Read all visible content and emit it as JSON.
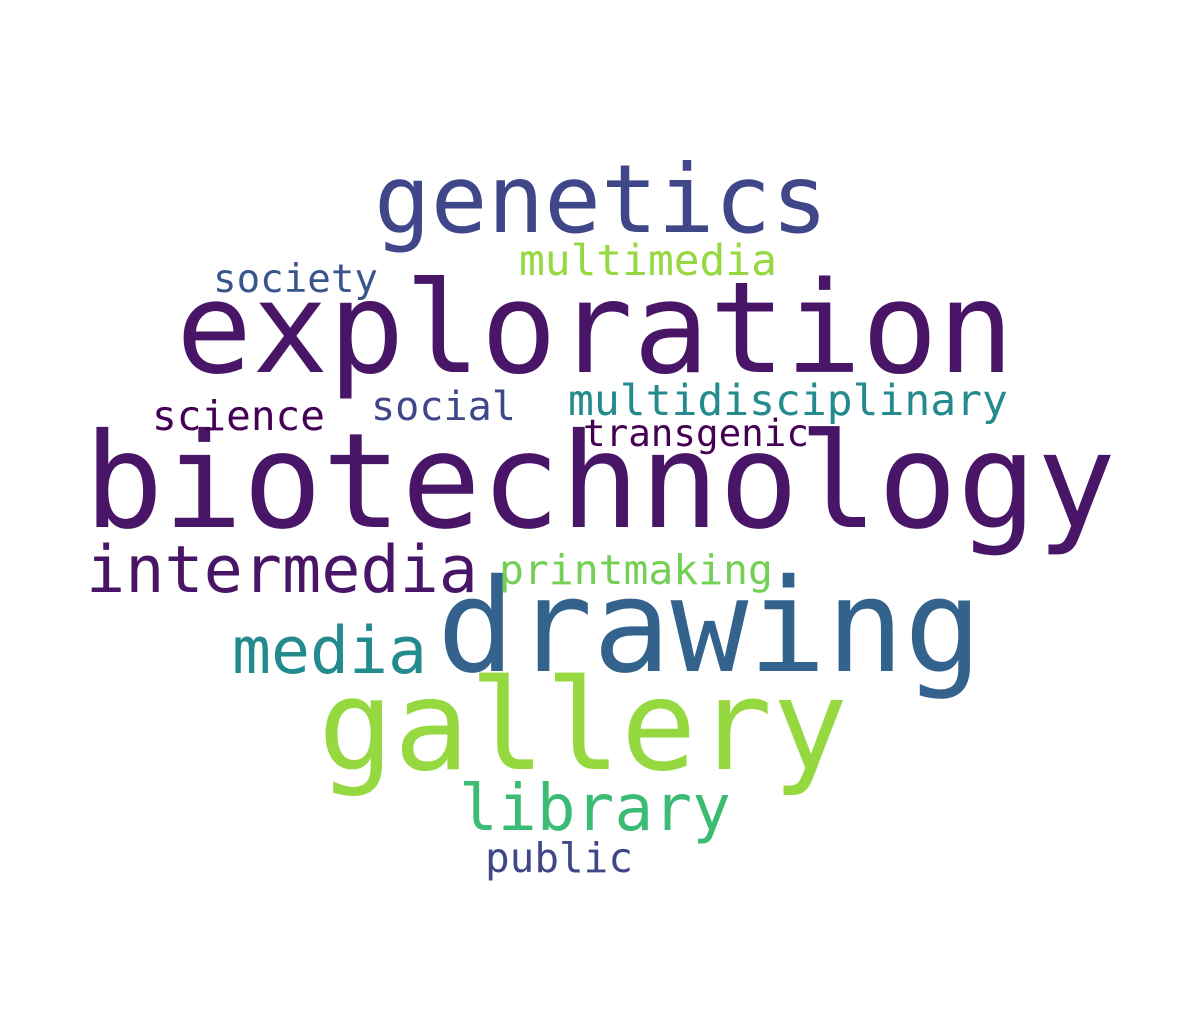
{
  "words": [
    {
      "text": "biotechnology",
      "color": "#481567"
    },
    {
      "text": "exploration",
      "color": "#481567"
    },
    {
      "text": "drawing",
      "color": "#33638D"
    },
    {
      "text": "gallery",
      "color": "#95D840"
    },
    {
      "text": "genetics",
      "color": "#404788"
    },
    {
      "text": "intermedia",
      "color": "#481567"
    },
    {
      "text": "media",
      "color": "#238A8D"
    },
    {
      "text": "library",
      "color": "#3CBB75"
    },
    {
      "text": "multidisciplinary",
      "color": "#238A8D"
    },
    {
      "text": "multimedia",
      "color": "#95D840"
    },
    {
      "text": "printmaking",
      "color": "#73D055"
    },
    {
      "text": "society",
      "color": "#39568C"
    },
    {
      "text": "science",
      "color": "#440154"
    },
    {
      "text": "social",
      "color": "#404788"
    },
    {
      "text": "transgenic",
      "color": "#440154"
    },
    {
      "text": "public",
      "color": "#404788"
    }
  ]
}
